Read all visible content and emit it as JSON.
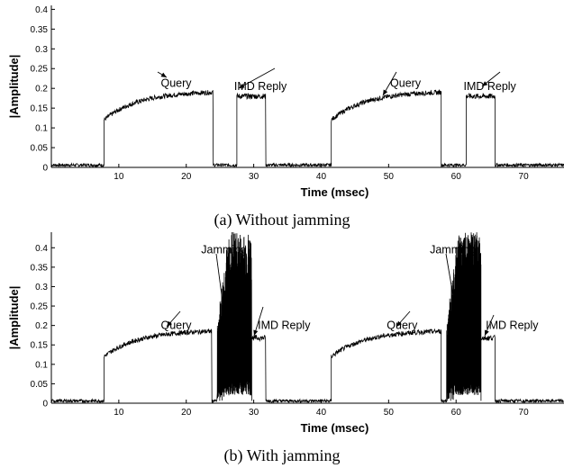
{
  "chart_data": [
    {
      "type": "line",
      "caption": "(a) Without jamming",
      "xlabel": "Time (msec)",
      "ylabel": "|Amplitude|",
      "xlim": [
        0,
        76
      ],
      "ylim": [
        0,
        0.41
      ],
      "xticks": [
        "10",
        "20",
        "30",
        "40",
        "50",
        "60",
        "70"
      ],
      "yticks": [
        "0",
        "0.05",
        "0.1",
        "0.15",
        "0.2",
        "0.25",
        "0.3",
        "0.35",
        "0.4"
      ],
      "grid": false,
      "segments": [
        {
          "kind": "noise",
          "x0": 0,
          "x1": 7.8,
          "level": 0.006
        },
        {
          "kind": "query",
          "x0": 7.8,
          "x1": 24.0,
          "start": 0.12,
          "end": 0.19
        },
        {
          "kind": "noise",
          "x0": 24.0,
          "x1": 27.5,
          "level": 0.006
        },
        {
          "kind": "reply",
          "x0": 27.5,
          "x1": 31.8,
          "level": 0.18
        },
        {
          "kind": "noise",
          "x0": 31.8,
          "x1": 41.5,
          "level": 0.006
        },
        {
          "kind": "query",
          "x0": 41.5,
          "x1": 57.8,
          "start": 0.12,
          "end": 0.19
        },
        {
          "kind": "noise",
          "x0": 57.8,
          "x1": 61.5,
          "level": 0.006
        },
        {
          "kind": "reply",
          "x0": 61.5,
          "x1": 65.8,
          "level": 0.18
        },
        {
          "kind": "noise",
          "x0": 65.8,
          "x1": 76,
          "level": 0.006
        }
      ],
      "annotations": [
        {
          "text": "Query",
          "x": 18.5,
          "y": 0.213
        },
        {
          "text": "IMD Reply",
          "x": 31.0,
          "y": 0.205
        },
        {
          "text": "Query",
          "x": 52.5,
          "y": 0.213
        },
        {
          "text": "IMD Reply",
          "x": 65.0,
          "y": 0.205
        }
      ]
    },
    {
      "type": "line",
      "caption": "(b) With jamming",
      "xlabel": "Time (msec)",
      "ylabel": "|Amplitude|",
      "xlim": [
        0,
        76
      ],
      "ylim": [
        0,
        0.44
      ],
      "xticks": [
        "10",
        "20",
        "30",
        "40",
        "50",
        "60",
        "70"
      ],
      "yticks": [
        "0",
        "0.05",
        "0.1",
        "0.15",
        "0.2",
        "0.25",
        "0.3",
        "0.35",
        "0.4"
      ],
      "grid": false,
      "segments": [
        {
          "kind": "noise",
          "x0": 0,
          "x1": 7.8,
          "level": 0.006
        },
        {
          "kind": "query",
          "x0": 7.8,
          "x1": 23.8,
          "start": 0.12,
          "end": 0.185
        },
        {
          "kind": "noise",
          "x0": 23.8,
          "x1": 24.6,
          "level": 0.006
        },
        {
          "kind": "jam",
          "x0": 24.6,
          "x1": 29.7,
          "peak": 0.44
        },
        {
          "kind": "reply",
          "x0": 29.7,
          "x1": 31.8,
          "level": 0.168
        },
        {
          "kind": "noise",
          "x0": 31.8,
          "x1": 41.5,
          "level": 0.006
        },
        {
          "kind": "query",
          "x0": 41.5,
          "x1": 57.8,
          "start": 0.12,
          "end": 0.185
        },
        {
          "kind": "noise",
          "x0": 57.8,
          "x1": 58.6,
          "level": 0.006
        },
        {
          "kind": "jam",
          "x0": 58.6,
          "x1": 63.7,
          "peak": 0.44
        },
        {
          "kind": "reply",
          "x0": 63.7,
          "x1": 65.8,
          "level": 0.168
        },
        {
          "kind": "noise",
          "x0": 65.8,
          "x1": 76,
          "level": 0.006
        }
      ],
      "annotations": [
        {
          "text": "Jamming",
          "x": 25.6,
          "y": 0.395
        },
        {
          "text": "Query",
          "x": 18.5,
          "y": 0.2
        },
        {
          "text": "IMD Reply",
          "x": 34.5,
          "y": 0.2
        },
        {
          "text": "Jamming",
          "x": 59.5,
          "y": 0.395
        },
        {
          "text": "Query",
          "x": 52.0,
          "y": 0.2
        },
        {
          "text": "IMD Reply",
          "x": 68.3,
          "y": 0.2
        }
      ]
    }
  ]
}
